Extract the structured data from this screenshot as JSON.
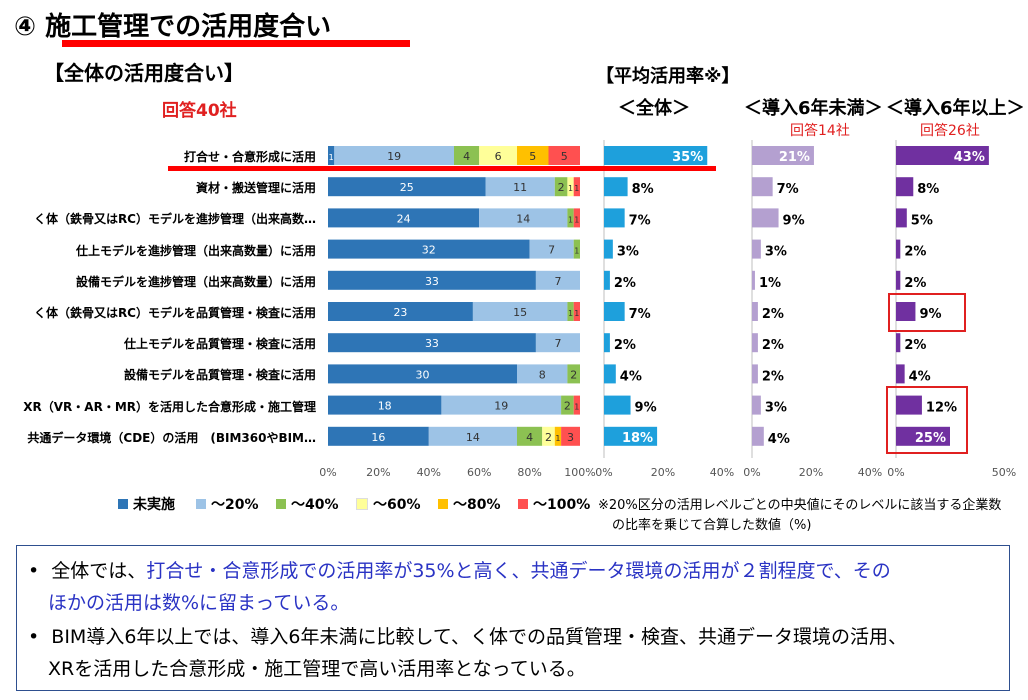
{
  "header": {
    "title": "④ 施工管理での活用度合い",
    "subtitle": "【全体の活用度合い】",
    "respondents": "回答40社"
  },
  "columns": {
    "avg_title": "【平均活用率※】",
    "overall": "＜全体＞",
    "under6": "＜導入6年未満＞",
    "under6_count": "回答14社",
    "over6": "＜導入6年以上＞",
    "over6_count": "回答26社"
  },
  "colors": {
    "none": "#2e75b6",
    "to20": "#9dc3e6",
    "to40": "#8cc152",
    "to60": "#ffff99",
    "to80": "#ffc000",
    "to100": "#ff5050",
    "avg_overall": "#1ea0dc",
    "avg_under6": "#b4a0d0",
    "avg_over6": "#7030a0",
    "highlight": "#e02020"
  },
  "legend": [
    "未実施",
    "～20%",
    "～40%",
    "～60%",
    "～80%",
    "～100%"
  ],
  "note": {
    "line1": "※20%区分の活用レベルごとの中央値にそのレベルに該当する企業数",
    "line2": "の比率を乗じて合算した数値（%)"
  },
  "summary": {
    "b1_pre": "全体では、",
    "b1_blue": "打合せ・合意形成での活用率が35%と高く、共通データ環境の活用が２割程度で、その",
    "b1_blue2": "ほかの活用は数%に留まっている。",
    "b2_line1": "BIM導入6年以上では、導入6年未満に比較して、く体での品質管理・検査、共通データ環境の活用、",
    "b2_line2": "XRを活用した合意形成・施工管理で高い活用率となっている。"
  },
  "chart_data": [
    {
      "type": "bar",
      "orientation": "horizontal",
      "stacked": true,
      "normalized": true,
      "categories": [
        "打合せ・合意形成に活用",
        "資材・搬送管理に活用",
        "く体（鉄骨又はRC）モデルを進捗管理（出来高数…",
        "仕上モデルを進捗管理（出来高数量）に活用",
        "設備モデルを進捗管理（出来高数量）に活用",
        "く体（鉄骨又はRC）モデルを品質管理・検査に活用",
        "仕上モデルを品質管理・検査に活用",
        "設備モデルを品質管理・検査に活用",
        "XR（VR・AR・MR）を活用した合意形成・施工管理",
        "共通データ環境（CDE）の活用　(BIM360やBIM…"
      ],
      "series": [
        {
          "name": "未実施",
          "values": [
            1,
            25,
            24,
            32,
            33,
            23,
            33,
            30,
            18,
            16
          ]
        },
        {
          "name": "～20%",
          "values": [
            19,
            11,
            14,
            7,
            7,
            15,
            7,
            8,
            19,
            14
          ]
        },
        {
          "name": "～40%",
          "values": [
            4,
            2,
            1,
            1,
            0,
            1,
            0,
            2,
            2,
            4
          ]
        },
        {
          "name": "～60%",
          "values": [
            6,
            1,
            0,
            0,
            0,
            0,
            0,
            0,
            0,
            2
          ]
        },
        {
          "name": "～80%",
          "values": [
            5,
            0,
            0,
            0,
            0,
            0,
            0,
            0,
            0,
            1
          ]
        },
        {
          "name": "～100%",
          "values": [
            5,
            1,
            1,
            0,
            0,
            1,
            0,
            0,
            1,
            3
          ]
        }
      ],
      "xticks": [
        "0%",
        "20%",
        "40%",
        "60%",
        "80%",
        "100%"
      ]
    },
    {
      "type": "bar",
      "orientation": "horizontal",
      "title": "＜全体＞",
      "values": [
        35,
        8,
        7,
        3,
        2,
        7,
        2,
        4,
        9,
        18
      ],
      "labels": [
        "35%",
        "8%",
        "7%",
        "3%",
        "2%",
        "7%",
        "2%",
        "4%",
        "9%",
        "18%"
      ],
      "xlim": [
        0,
        40
      ],
      "xticks": [
        "0%",
        "20%",
        "40%"
      ]
    },
    {
      "type": "bar",
      "orientation": "horizontal",
      "title": "＜導入6年未満＞",
      "values": [
        21,
        7,
        9,
        3,
        1,
        2,
        2,
        2,
        3,
        4
      ],
      "labels": [
        "21%",
        "7%",
        "9%",
        "3%",
        "1%",
        "2%",
        "2%",
        "2%",
        "3%",
        "4%"
      ],
      "xlim": [
        0,
        40
      ],
      "xticks": [
        "0%",
        "20%",
        "40%"
      ]
    },
    {
      "type": "bar",
      "orientation": "horizontal",
      "title": "＜導入6年以上＞",
      "values": [
        43,
        8,
        5,
        2,
        2,
        9,
        2,
        4,
        12,
        25
      ],
      "labels": [
        "43%",
        "8%",
        "5%",
        "2%",
        "2%",
        "9%",
        "2%",
        "4%",
        "12%",
        "25%"
      ],
      "highlighted": [
        5,
        8,
        9
      ],
      "xlim": [
        0,
        50
      ],
      "xticks": [
        "0%",
        "50%"
      ]
    }
  ]
}
